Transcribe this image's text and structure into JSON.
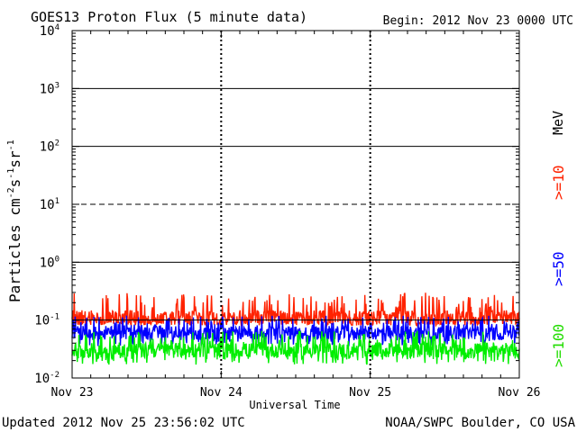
{
  "chart_data": {
    "type": "line",
    "title": "GOES13 Proton Flux (5 minute data)",
    "begin": "Begin: 2012 Nov 23 0000 UTC",
    "xlabel": "Universal Time",
    "ylabel_parts": [
      "Particles cm",
      "-2",
      "s",
      "-1",
      "sr",
      "-1"
    ],
    "x_ticks": [
      "Nov 23",
      "Nov 24",
      "Nov 25",
      "Nov 26"
    ],
    "xlim": [
      0,
      3
    ],
    "y_scale": "log",
    "ylim": [
      0.01,
      10000
    ],
    "y_ticks": [
      {
        "base": "10",
        "exp": "4"
      },
      {
        "base": "10",
        "exp": "3"
      },
      {
        "base": "10",
        "exp": "2"
      },
      {
        "base": "10",
        "exp": "1"
      },
      {
        "base": "10",
        "exp": "0"
      },
      {
        "base": "10",
        "exp": "-1"
      },
      {
        "base": "10",
        "exp": "-2"
      }
    ],
    "threshold_lines": [
      {
        "value": 1000,
        "style": "solid"
      },
      {
        "value": 100,
        "style": "solid"
      },
      {
        "value": 10,
        "style": "dashed"
      },
      {
        "value": 1,
        "style": "solid"
      },
      {
        "value": 0.1,
        "style": "solid"
      }
    ],
    "unit": "MeV",
    "series": [
      {
        "name": ">=10",
        "color": "#ff2200",
        "typical": 0.11,
        "spread_low": 0.08,
        "spread_high": 0.3
      },
      {
        "name": ">=50",
        "color": "#0000ff",
        "typical": 0.06,
        "spread_low": 0.035,
        "spread_high": 0.12
      },
      {
        "name": ">=100",
        "color": "#00ee00",
        "typical": 0.03,
        "spread_low": 0.017,
        "spread_high": 0.065
      }
    ],
    "grid": "dashed vertical day separators"
  },
  "footer": {
    "updated": "Updated 2012 Nov 25 23:56:02 UTC",
    "source": "NOAA/SWPC Boulder, CO USA"
  }
}
